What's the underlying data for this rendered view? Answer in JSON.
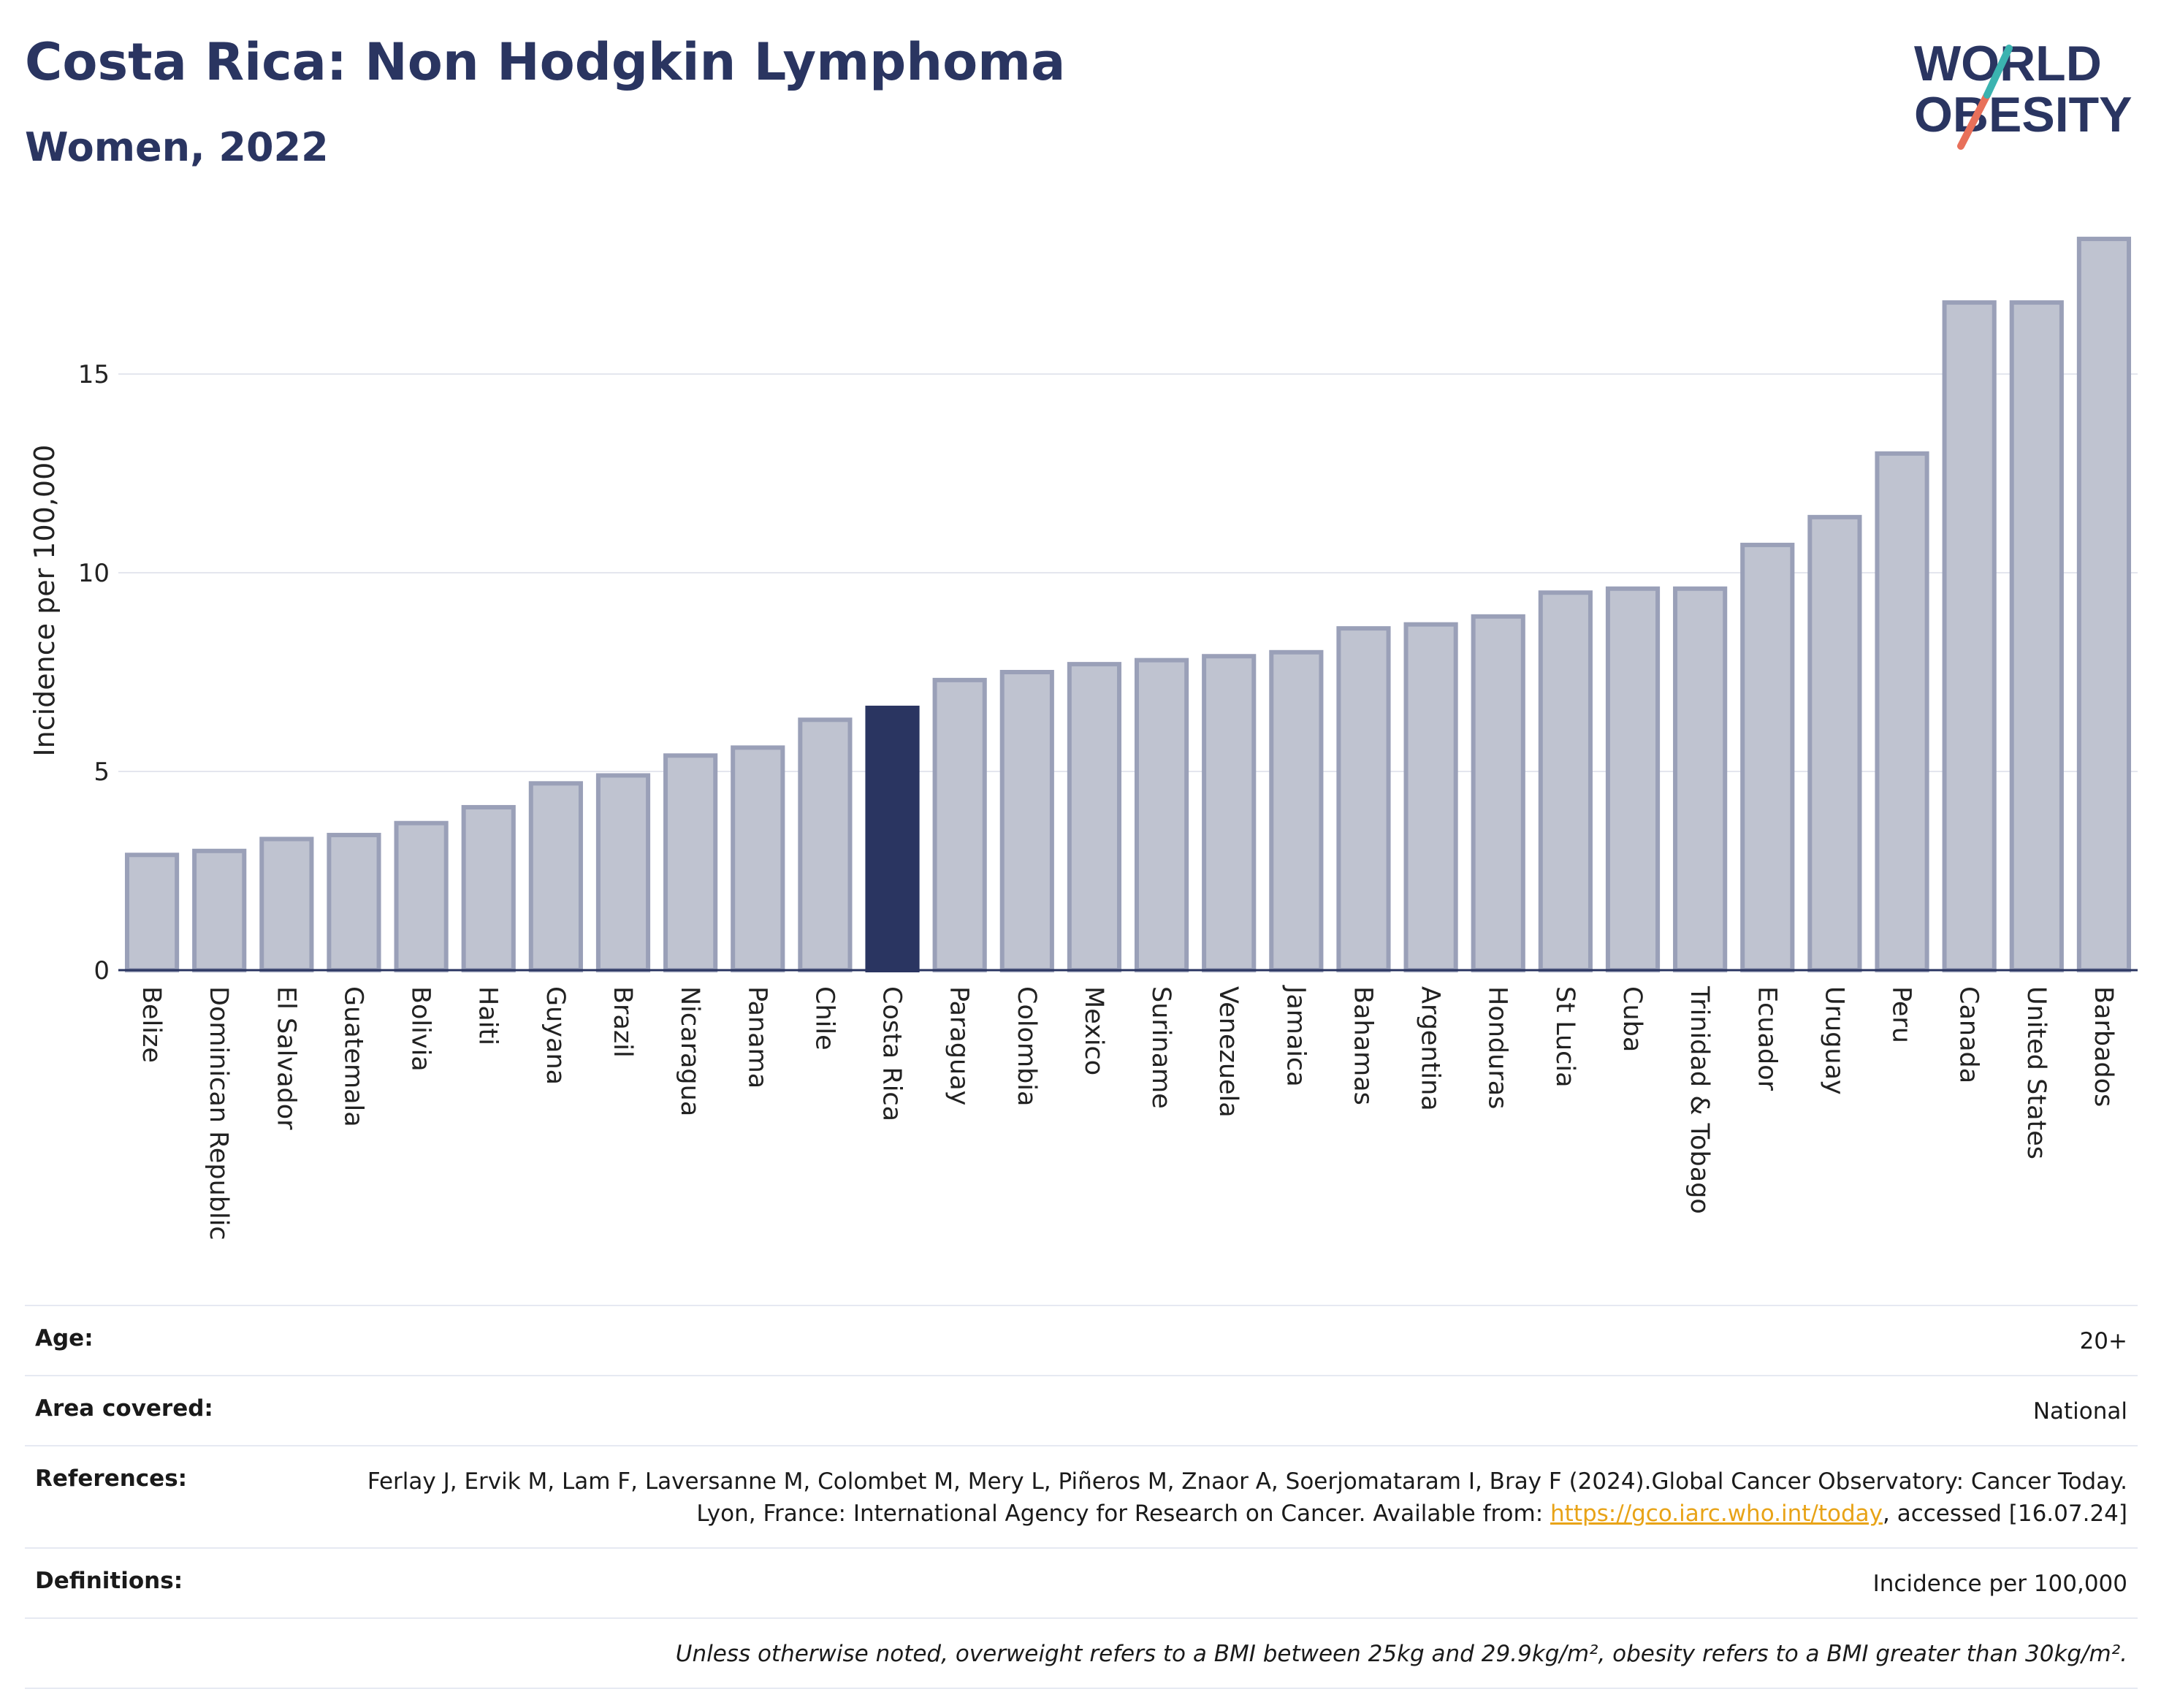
{
  "header": {
    "title": "Costa Rica: Non Hodgkin Lymphoma",
    "subtitle": "Women, 2022"
  },
  "logo": {
    "line1": "WORLD",
    "line2": "OBESITY"
  },
  "colors": {
    "highlight": "#2a3561",
    "bar": "#bfc3d0",
    "bar_stroke": "#9aa0b8",
    "link": "#e8a317"
  },
  "chart_data": {
    "type": "bar",
    "ylabel": "Incidence per 100,000",
    "ylim": [
      0,
      18.5
    ],
    "yticks": [
      0,
      5,
      10,
      15
    ],
    "grid": true,
    "highlight": "Costa Rica",
    "categories": [
      "Belize",
      "Dominican Republic",
      "El Salvador",
      "Guatemala",
      "Bolivia",
      "Haiti",
      "Guyana",
      "Brazil",
      "Nicaragua",
      "Panama",
      "Chile",
      "Costa Rica",
      "Paraguay",
      "Colombia",
      "Mexico",
      "Suriname",
      "Venezuela",
      "Jamaica",
      "Bahamas",
      "Argentina",
      "Honduras",
      "St Lucia",
      "Cuba",
      "Trinidad & Tobago",
      "Ecuador",
      "Uruguay",
      "Peru",
      "Canada",
      "United States",
      "Barbados"
    ],
    "values": [
      2.9,
      3.0,
      3.3,
      3.4,
      3.7,
      4.1,
      4.7,
      4.9,
      5.4,
      5.6,
      6.3,
      6.6,
      7.3,
      7.5,
      7.7,
      7.8,
      7.9,
      8.0,
      8.6,
      8.7,
      8.9,
      9.5,
      9.6,
      9.6,
      10.7,
      11.4,
      13.0,
      16.8,
      16.8,
      18.4
    ]
  },
  "info": {
    "age_label": "Age:",
    "age_value": "20+",
    "area_label": "Area covered:",
    "area_value": "National",
    "references_label": "References:",
    "references_text_1": "Ferlay J, Ervik M, Lam F, Laversanne M, Colombet M, Mery L, Piñeros M, Znaor A, Soerjomataram I, Bray F (2024).Global Cancer Observatory: Cancer Today. Lyon, France: International Agency for Research on Cancer. Available from: ",
    "references_link": "https://gco.iarc.who.int/today",
    "references_text_2": ", accessed [16.07.24]",
    "definitions_label": "Definitions:",
    "definitions_value": "Incidence per 100,000",
    "note": "Unless otherwise noted, overweight refers to a BMI between 25kg and 29.9kg/m², obesity refers to a BMI greater than 30kg/m²."
  }
}
